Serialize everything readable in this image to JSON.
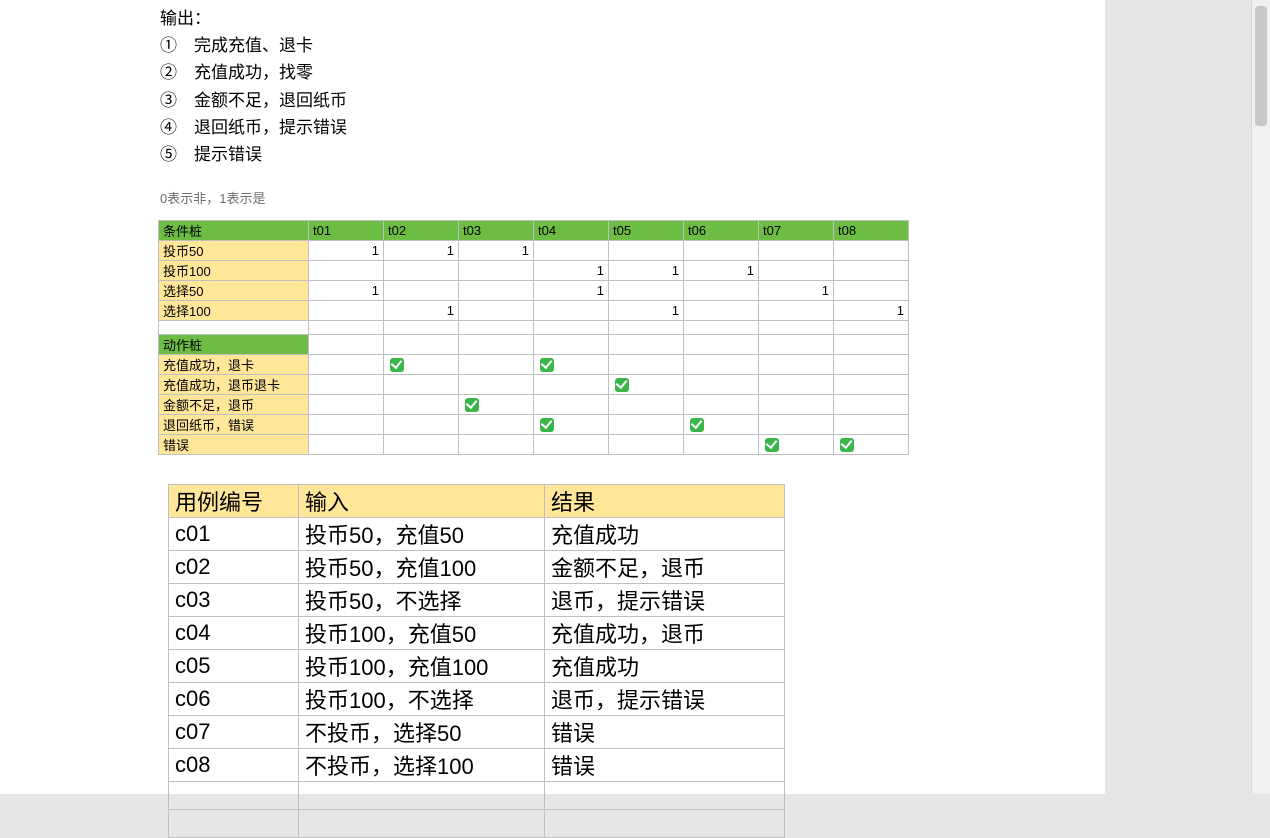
{
  "output": {
    "title": "输出：",
    "items": [
      "①　完成充值、退卡",
      "②　充值成功，找零",
      "③　金额不足，退回纸币",
      "④　退回纸币，提示错误",
      "⑤　提示错误"
    ]
  },
  "legend_note": "0表示非，1表示是",
  "decision_table": {
    "condition_header": "条件桩",
    "t_labels": [
      "t01",
      "t02",
      "t03",
      "t04",
      "t05",
      "t06",
      "t07",
      "t08"
    ],
    "condition_rows": [
      {
        "label": "投币50",
        "cells": [
          "1",
          "1",
          "1",
          "",
          "",
          "",
          "",
          ""
        ]
      },
      {
        "label": "投币100",
        "cells": [
          "",
          "",
          "",
          "1",
          "1",
          "1",
          "",
          ""
        ]
      },
      {
        "label": "选择50",
        "cells": [
          "1",
          "",
          "",
          "1",
          "",
          "",
          "1",
          ""
        ]
      },
      {
        "label": "选择100",
        "cells": [
          "",
          "1",
          "",
          "",
          "1",
          "",
          "",
          "1"
        ]
      }
    ],
    "action_header": "动作桩",
    "action_rows": [
      {
        "label": "充值成功，退卡",
        "checks": [
          1,
          3
        ]
      },
      {
        "label": "充值成功，退币退卡",
        "checks": [
          4
        ]
      },
      {
        "label": "金额不足，退币",
        "checks": [
          2
        ]
      },
      {
        "label": "退回纸币，错误",
        "checks": [
          3,
          5
        ]
      },
      {
        "label": "错误",
        "checks": [
          6,
          7
        ]
      }
    ],
    "colors": {
      "header_green": "#6dbd45",
      "row_yellow": "#ffe699",
      "check_green": "#3ab54a",
      "border": "#bfbfbf"
    }
  },
  "testcase_table": {
    "columns": [
      "用例编号",
      "输入",
      "结果"
    ],
    "rows": [
      [
        "c01",
        "投币50，充值50",
        "充值成功"
      ],
      [
        "c02",
        "投币50，充值100",
        "金额不足，退币"
      ],
      [
        "c03",
        "投币50，不选择",
        "退币，提示错误"
      ],
      [
        "c04",
        "投币100，充值50",
        "充值成功，退币"
      ],
      [
        "c05",
        "投币100，充值100",
        "充值成功"
      ],
      [
        "c06",
        "投币100，不选择",
        "退币，提示错误"
      ],
      [
        "c07",
        "不投币，选择50",
        "错误"
      ],
      [
        "c08",
        "不投币，选择100",
        "错误"
      ]
    ],
    "header_color": "#ffe699",
    "border_color": "#bfbfbf",
    "fontsize": 22
  }
}
